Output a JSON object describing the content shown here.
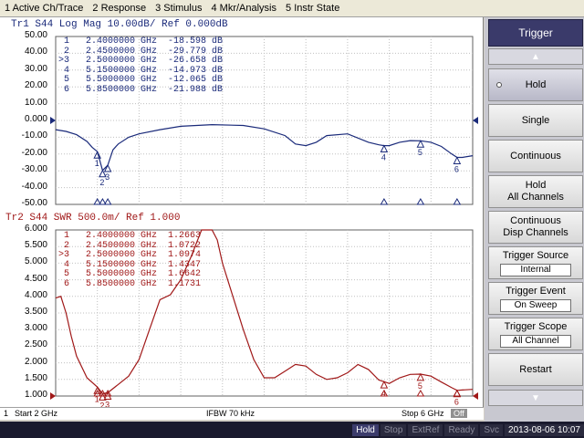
{
  "menu": [
    "1 Active Ch/Trace",
    "2 Response",
    "3 Stimulus",
    "4 Mkr/Analysis",
    "5 Instr State"
  ],
  "trace1": {
    "header": "Tr1  S44  Log Mag 10.00dB/ Ref 0.000dB",
    "color": "#1a2a7a",
    "yticks": [
      "50.00",
      "40.00",
      "30.00",
      "20.00",
      "10.00",
      "0.000",
      "-10.00",
      "-20.00",
      "-30.00",
      "-40.00",
      "-50.00"
    ],
    "markers": [
      {
        "id": "1",
        "sel": " ",
        "freq": "2.4000000 GHz",
        "val": "-18.598 dB"
      },
      {
        "id": "2",
        "sel": " ",
        "freq": "2.4500000 GHz",
        "val": "-29.779 dB"
      },
      {
        "id": "3",
        "sel": ">",
        "freq": "2.5000000 GHz",
        "val": "-26.658 dB"
      },
      {
        "id": "4",
        "sel": " ",
        "freq": "5.1500000 GHz",
        "val": "-14.973 dB"
      },
      {
        "id": "5",
        "sel": " ",
        "freq": "5.5000000 GHz",
        "val": "-12.065 dB"
      },
      {
        "id": "6",
        "sel": " ",
        "freq": "5.8500000 GHz",
        "val": "-21.988 dB"
      }
    ]
  },
  "trace2": {
    "header": "Tr2  S44  SWR 500.0m/ Ref 1.000",
    "color": "#a01818",
    "yticks": [
      "6.000",
      "5.500",
      "5.000",
      "4.500",
      "4.000",
      "3.500",
      "3.000",
      "2.500",
      "2.000",
      "1.500",
      "1.000"
    ],
    "markers": [
      {
        "id": "1",
        "sel": " ",
        "freq": "2.4000000 GHz",
        "val": "1.2663"
      },
      {
        "id": "2",
        "sel": " ",
        "freq": "2.4500000 GHz",
        "val": "1.0722"
      },
      {
        "id": "3",
        "sel": ">",
        "freq": "2.5000000 GHz",
        "val": "1.0974"
      },
      {
        "id": "4",
        "sel": " ",
        "freq": "5.1500000 GHz",
        "val": "1.4347"
      },
      {
        "id": "5",
        "sel": " ",
        "freq": "5.5000000 GHz",
        "val": "1.6642"
      },
      {
        "id": "6",
        "sel": " ",
        "freq": "5.8500000 GHz",
        "val": "1.1731"
      }
    ]
  },
  "chart_data": [
    {
      "type": "line",
      "title": "Tr1  S44  Log Mag 10.00dB/ Ref 0.000dB",
      "xlabel": "",
      "ylabel": "",
      "xlim": [
        2,
        6
      ],
      "ylim": [
        -50,
        50
      ],
      "grid": true,
      "series": [
        {
          "x": [
            2.0,
            2.1,
            2.2,
            2.3,
            2.35,
            2.4,
            2.45,
            2.5,
            2.55,
            2.6,
            2.7,
            2.8,
            3.0,
            3.2,
            3.5,
            3.8,
            4.0,
            4.2,
            4.3,
            4.4,
            4.5,
            4.6,
            4.8,
            5.0,
            5.1,
            5.15,
            5.2,
            5.3,
            5.4,
            5.5,
            5.6,
            5.7,
            5.8,
            5.85,
            5.9,
            6.0
          ],
          "y": [
            -5.5,
            -6.5,
            -8.5,
            -12.5,
            -16,
            -18.6,
            -29.8,
            -26.7,
            -17.5,
            -14,
            -10,
            -8,
            -5.5,
            -3.5,
            -2.5,
            -3,
            -5,
            -9,
            -14,
            -15,
            -13,
            -9,
            -8,
            -13,
            -14.5,
            -15,
            -15,
            -13,
            -12,
            -12.1,
            -13,
            -15.5,
            -20,
            -22,
            -22,
            -21
          ]
        }
      ],
      "markers": [
        {
          "label": "1",
          "x": 2.4,
          "y": -18.598
        },
        {
          "label": "2",
          "x": 2.45,
          "y": -29.779
        },
        {
          "label": "3",
          "x": 2.5,
          "y": -26.658
        },
        {
          "label": "4",
          "x": 5.15,
          "y": -14.973
        },
        {
          "label": "5",
          "x": 5.5,
          "y": -12.065
        },
        {
          "label": "6",
          "x": 5.85,
          "y": -21.988
        }
      ]
    },
    {
      "type": "line",
      "title": "Tr2  S44  SWR 500.0m/ Ref 1.000",
      "xlabel": "",
      "ylabel": "",
      "xlim": [
        2,
        6
      ],
      "ylim": [
        1.0,
        6.0
      ],
      "grid": true,
      "series": [
        {
          "x": [
            2.0,
            2.05,
            2.1,
            2.15,
            2.2,
            2.3,
            2.4,
            2.45,
            2.5,
            2.6,
            2.7,
            2.8,
            2.9,
            3.0,
            3.1,
            3.2,
            3.3,
            3.4,
            3.5,
            3.55,
            3.6,
            3.7,
            3.8,
            3.9,
            4.0,
            4.1,
            4.2,
            4.3,
            4.4,
            4.5,
            4.6,
            4.7,
            4.8,
            4.9,
            5.0,
            5.1,
            5.15,
            5.2,
            5.3,
            5.4,
            5.5,
            5.6,
            5.7,
            5.8,
            5.85,
            5.9,
            6.0
          ],
          "y": [
            3.95,
            4.0,
            3.5,
            2.8,
            2.2,
            1.55,
            1.27,
            1.07,
            1.1,
            1.35,
            1.6,
            2.1,
            3.0,
            3.9,
            4.05,
            4.5,
            5.2,
            6.0,
            6.0,
            5.7,
            5.0,
            4.0,
            3.0,
            2.1,
            1.55,
            1.55,
            1.75,
            1.95,
            1.9,
            1.65,
            1.5,
            1.55,
            1.7,
            1.95,
            1.8,
            1.48,
            1.43,
            1.38,
            1.55,
            1.65,
            1.66,
            1.6,
            1.42,
            1.25,
            1.17,
            1.18,
            1.2
          ]
        }
      ],
      "markers": [
        {
          "label": "1",
          "x": 2.4,
          "y": 1.2663
        },
        {
          "label": "2",
          "x": 2.45,
          "y": 1.0722
        },
        {
          "label": "3",
          "x": 2.5,
          "y": 1.0974
        },
        {
          "label": "4",
          "x": 5.15,
          "y": 1.4347
        },
        {
          "label": "5",
          "x": 5.5,
          "y": 1.6642
        },
        {
          "label": "6",
          "x": 5.85,
          "y": 1.1731
        }
      ]
    }
  ],
  "channel_bar": {
    "channel": "1",
    "start": "Start 2 GHz",
    "ifbw": "IFBW 70 kHz",
    "stop": "Stop 6 GHz",
    "off": "Off"
  },
  "status": {
    "items": [
      "Hold",
      "Stop",
      "ExtRef",
      "Ready",
      "Svc"
    ],
    "active": "Hold",
    "clock": "2013-08-06 10:07"
  },
  "softkeys": {
    "title": "Trigger",
    "hold": "Hold",
    "single": "Single",
    "continuous": "Continuous",
    "hold_all_1": "Hold",
    "hold_all_2": "All Channels",
    "cont_disp_1": "Continuous",
    "cont_disp_2": "Disp Channels",
    "source_label": "Trigger Source",
    "source_value": "Internal",
    "event_label": "Trigger Event",
    "event_value": "On Sweep",
    "scope_label": "Trigger Scope",
    "scope_value": "All Channel",
    "restart": "Restart"
  }
}
